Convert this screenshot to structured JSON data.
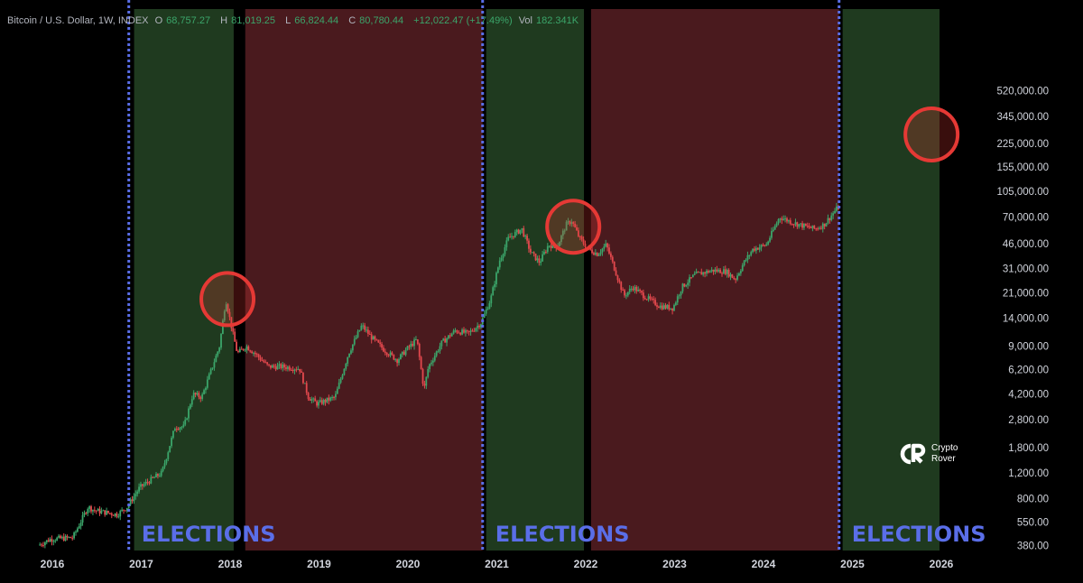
{
  "header": {
    "symbol": "Bitcoin / U.S. Dollar, 1W, INDEX",
    "open_label": "O",
    "open": "68,757.27",
    "high_label": "H",
    "high": "81,019.25",
    "low_label": "L",
    "low": "66,824.44",
    "close_label": "C",
    "close": "80,780.44",
    "change": "+12,022.47 (+17.49%)",
    "vol_label": "Vol",
    "vol": "182.341K"
  },
  "logo": {
    "line1": "Crypto",
    "line2": "Rover"
  },
  "colors": {
    "bull_zone": "#1f3a1f",
    "bear_zone": "#4a1a1e",
    "election_line": "#5a6ee8",
    "up_candle": "#3ba56a",
    "down_candle": "#e2484d",
    "highlight_circle": "#e53935",
    "elections_text": "#5a6ee8"
  },
  "chart_data": {
    "type": "candlestick",
    "title": "Bitcoin / U.S. Dollar, 1W, INDEX",
    "y_scale": "log",
    "y_ticks": [
      "520,000.00",
      "345,000.00",
      "225,000.00",
      "155,000.00",
      "105,000.00",
      "70,000.00",
      "46,000.00",
      "31,000.00",
      "21,000.00",
      "14,000.00",
      "9,000.00",
      "6,200.00",
      "4,200.00",
      "2,800.00",
      "1,800.00",
      "1,200.00",
      "800.00",
      "550.00",
      "380.00"
    ],
    "x_ticks": [
      "2016",
      "2017",
      "2018",
      "2019",
      "2020",
      "2021",
      "2022",
      "2023",
      "2024",
      "2025",
      "2026"
    ],
    "election_lines": [
      2016.86,
      2020.84,
      2024.85
    ],
    "election_labels": [
      "ELECTIONS",
      "ELECTIONS",
      "ELECTIONS"
    ],
    "zones": [
      {
        "type": "bull",
        "start": 2016.92,
        "end": 2018.04
      },
      {
        "type": "bear",
        "start": 2018.17,
        "end": 2020.84
      },
      {
        "type": "bull",
        "start": 2020.88,
        "end": 2021.98
      },
      {
        "type": "bear",
        "start": 2022.06,
        "end": 2024.85
      },
      {
        "type": "bull",
        "start": 2024.89,
        "end": 2025.98
      }
    ],
    "highlight_circles": [
      {
        "date": 2017.97,
        "price": 19000
      },
      {
        "date": 2021.86,
        "price": 60000
      },
      {
        "date": 2025.89,
        "price": 260000
      }
    ],
    "price_path": [
      [
        2015.86,
        380
      ],
      [
        2016.0,
        420
      ],
      [
        2016.25,
        430
      ],
      [
        2016.42,
        700
      ],
      [
        2016.5,
        660
      ],
      [
        2016.75,
        620
      ],
      [
        2016.86,
        700
      ],
      [
        2017.0,
        950
      ],
      [
        2017.15,
        1100
      ],
      [
        2017.25,
        1200
      ],
      [
        2017.4,
        2500
      ],
      [
        2017.5,
        2500
      ],
      [
        2017.6,
        4200
      ],
      [
        2017.7,
        4000
      ],
      [
        2017.8,
        6000
      ],
      [
        2017.9,
        9000
      ],
      [
        2017.97,
        19000
      ],
      [
        2018.05,
        11000
      ],
      [
        2018.1,
        8000
      ],
      [
        2018.2,
        9000
      ],
      [
        2018.3,
        8000
      ],
      [
        2018.45,
        6500
      ],
      [
        2018.6,
        6500
      ],
      [
        2018.8,
        6300
      ],
      [
        2018.9,
        4000
      ],
      [
        2019.0,
        3600
      ],
      [
        2019.2,
        4000
      ],
      [
        2019.35,
        8000
      ],
      [
        2019.5,
        12500
      ],
      [
        2019.6,
        10500
      ],
      [
        2019.75,
        8500
      ],
      [
        2019.9,
        7200
      ],
      [
        2020.0,
        8500
      ],
      [
        2020.12,
        10000
      ],
      [
        2020.2,
        4500
      ],
      [
        2020.25,
        6500
      ],
      [
        2020.4,
        9500
      ],
      [
        2020.55,
        11500
      ],
      [
        2020.7,
        11000
      ],
      [
        2020.84,
        13000
      ],
      [
        2020.95,
        19000
      ],
      [
        2021.05,
        35000
      ],
      [
        2021.15,
        50000
      ],
      [
        2021.3,
        58000
      ],
      [
        2021.4,
        40000
      ],
      [
        2021.5,
        34000
      ],
      [
        2021.6,
        45000
      ],
      [
        2021.7,
        44000
      ],
      [
        2021.8,
        62000
      ],
      [
        2021.86,
        66000
      ],
      [
        2021.95,
        50000
      ],
      [
        2022.05,
        42000
      ],
      [
        2022.15,
        39000
      ],
      [
        2022.25,
        45000
      ],
      [
        2022.35,
        30000
      ],
      [
        2022.45,
        20000
      ],
      [
        2022.55,
        23000
      ],
      [
        2022.7,
        19500
      ],
      [
        2022.85,
        17000
      ],
      [
        2023.0,
        16500
      ],
      [
        2023.1,
        23000
      ],
      [
        2023.25,
        28000
      ],
      [
        2023.45,
        30000
      ],
      [
        2023.6,
        29500
      ],
      [
        2023.7,
        26000
      ],
      [
        2023.8,
        34000
      ],
      [
        2023.9,
        42000
      ],
      [
        2024.05,
        45000
      ],
      [
        2024.2,
        70000
      ],
      [
        2024.35,
        64000
      ],
      [
        2024.5,
        60000
      ],
      [
        2024.6,
        58000
      ],
      [
        2024.7,
        62000
      ],
      [
        2024.85,
        81000
      ]
    ]
  }
}
